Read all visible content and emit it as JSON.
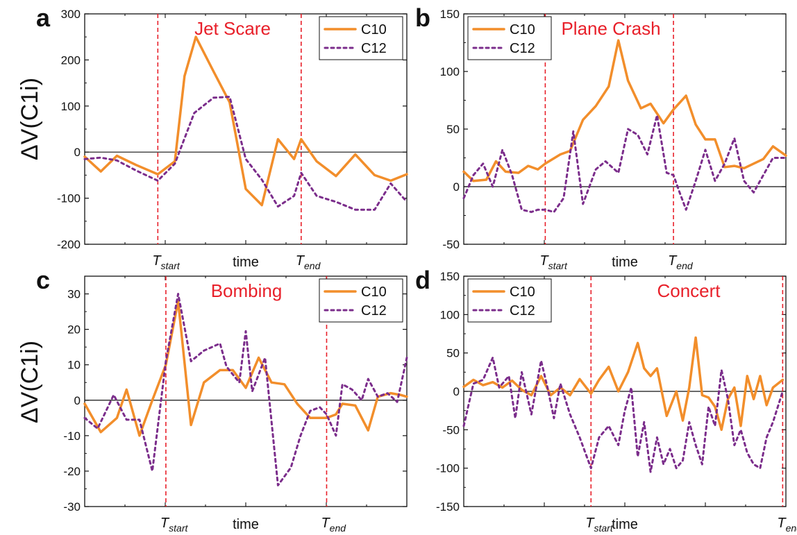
{
  "figure": {
    "ylabel_left": "ΔV(C1i)",
    "colors": {
      "c10": "#F28E2B",
      "c12": "#7B2D8B",
      "marker": "#E8202A",
      "axis": "#111111"
    }
  },
  "chart_data": [
    {
      "type": "line",
      "panel_letter": "a",
      "title": "Jet Scare",
      "xlabel": "time",
      "ylim": [
        -200,
        300
      ],
      "yticks": [
        -200,
        -100,
        0,
        100,
        200,
        300
      ],
      "x_range": [
        0,
        1
      ],
      "markers": [
        {
          "label": "T",
          "sub": "start",
          "x": 0.227
        },
        {
          "label": "T",
          "sub": "end",
          "x": 0.672
        }
      ],
      "legend": "top-right",
      "series": [
        {
          "name": "C10",
          "style": "solid",
          "color": "#F28E2B",
          "x": [
            0,
            0.05,
            0.1,
            0.16,
            0.227,
            0.28,
            0.31,
            0.345,
            0.4,
            0.45,
            0.5,
            0.55,
            0.6,
            0.65,
            0.672,
            0.72,
            0.78,
            0.84,
            0.9,
            0.95,
            1.0
          ],
          "y": [
            -10,
            -42,
            -8,
            -28,
            -48,
            -20,
            165,
            250,
            175,
            108,
            -80,
            -115,
            28,
            -15,
            28,
            -20,
            -52,
            -5,
            -50,
            -62,
            -48
          ]
        },
        {
          "name": "C12",
          "style": "dotted",
          "color": "#7B2D8B",
          "x": [
            0,
            0.05,
            0.1,
            0.16,
            0.227,
            0.28,
            0.34,
            0.4,
            0.45,
            0.5,
            0.55,
            0.6,
            0.65,
            0.672,
            0.72,
            0.78,
            0.84,
            0.9,
            0.95,
            1.0
          ],
          "y": [
            -15,
            -12,
            -18,
            -40,
            -62,
            -25,
            85,
            118,
            120,
            -15,
            -60,
            -118,
            -95,
            -45,
            -95,
            -108,
            -125,
            -125,
            -68,
            -108
          ]
        }
      ]
    },
    {
      "type": "line",
      "panel_letter": "b",
      "title": "Plane Crash",
      "xlabel": "time",
      "ylim": [
        -50,
        150
      ],
      "yticks": [
        -50,
        0,
        50,
        100,
        150
      ],
      "x_range": [
        0,
        1
      ],
      "markers": [
        {
          "label": "T",
          "sub": "start",
          "x": 0.253
        },
        {
          "label": "T",
          "sub": "end",
          "x": 0.651
        }
      ],
      "legend": "top-left",
      "series": [
        {
          "name": "C10",
          "style": "solid",
          "color": "#F28E2B",
          "x": [
            0,
            0.03,
            0.07,
            0.1,
            0.13,
            0.17,
            0.2,
            0.23,
            0.253,
            0.3,
            0.33,
            0.37,
            0.41,
            0.45,
            0.48,
            0.51,
            0.55,
            0.58,
            0.62,
            0.651,
            0.69,
            0.72,
            0.75,
            0.78,
            0.81,
            0.84,
            0.87,
            0.9,
            0.93,
            0.96,
            1.0
          ],
          "y": [
            13,
            5,
            6,
            22,
            13,
            12,
            18,
            15,
            20,
            28,
            31,
            58,
            70,
            87,
            127,
            92,
            68,
            72,
            55,
            67,
            79,
            54,
            41,
            41,
            17,
            18,
            16,
            20,
            24,
            35,
            27
          ]
        },
        {
          "name": "C12",
          "style": "dotted",
          "color": "#7B2D8B",
          "x": [
            0,
            0.03,
            0.06,
            0.09,
            0.12,
            0.15,
            0.18,
            0.21,
            0.23,
            0.253,
            0.28,
            0.31,
            0.34,
            0.37,
            0.41,
            0.44,
            0.48,
            0.51,
            0.54,
            0.57,
            0.6,
            0.63,
            0.651,
            0.67,
            0.69,
            0.72,
            0.75,
            0.78,
            0.81,
            0.84,
            0.87,
            0.9,
            0.93,
            0.96,
            1.0
          ],
          "y": [
            -10,
            10,
            20,
            0,
            32,
            10,
            -20,
            -22,
            -20,
            -20,
            -22,
            -10,
            48,
            -15,
            15,
            22,
            12,
            50,
            45,
            28,
            62,
            12,
            10,
            -5,
            -20,
            5,
            32,
            5,
            20,
            42,
            5,
            -5,
            10,
            25,
            25
          ]
        }
      ]
    },
    {
      "type": "line",
      "panel_letter": "c",
      "title": "Bombing",
      "xlabel": "time",
      "ylim": [
        -30,
        35
      ],
      "yticks": [
        -30,
        -20,
        -10,
        0,
        10,
        20,
        30
      ],
      "x_range": [
        0,
        1
      ],
      "markers": [
        {
          "label": "T",
          "sub": "start",
          "x": 0.252
        },
        {
          "label": "T",
          "sub": "end",
          "x": 0.751
        }
      ],
      "legend": "top-right",
      "series": [
        {
          "name": "C10",
          "style": "solid",
          "color": "#F28E2B",
          "x": [
            0,
            0.05,
            0.1,
            0.13,
            0.17,
            0.21,
            0.252,
            0.29,
            0.33,
            0.37,
            0.42,
            0.46,
            0.5,
            0.54,
            0.58,
            0.62,
            0.66,
            0.7,
            0.751,
            0.78,
            0.8,
            0.84,
            0.88,
            0.91,
            0.95,
            0.98,
            1.0
          ],
          "y": [
            -1,
            -9,
            -5,
            3,
            -10,
            0,
            10,
            28,
            -7,
            5,
            8.5,
            8.5,
            3.5,
            12,
            5,
            4.5,
            -1,
            -5,
            -5,
            -4,
            -1,
            -1.5,
            -8.5,
            1,
            2,
            1.5,
            1
          ]
        },
        {
          "name": "C12",
          "style": "dotted",
          "color": "#7B2D8B",
          "x": [
            0,
            0.04,
            0.09,
            0.13,
            0.17,
            0.21,
            0.252,
            0.29,
            0.33,
            0.37,
            0.42,
            0.44,
            0.48,
            0.5,
            0.52,
            0.56,
            0.6,
            0.64,
            0.67,
            0.7,
            0.73,
            0.751,
            0.78,
            0.8,
            0.83,
            0.86,
            0.88,
            0.91,
            0.94,
            0.97,
            1.0
          ],
          "y": [
            -5,
            -8,
            1.5,
            -5.5,
            -5.5,
            -20,
            11,
            30,
            11,
            14,
            16,
            9.5,
            5,
            19.5,
            2.5,
            12,
            -24,
            -19,
            -10,
            -3,
            -2,
            -4,
            -10,
            4.5,
            3,
            0,
            6,
            1,
            2,
            -0.5,
            12
          ]
        }
      ]
    },
    {
      "type": "line",
      "panel_letter": "d",
      "title": "Concert",
      "xlabel": "time",
      "ylim": [
        -150,
        150
      ],
      "yticks": [
        -150,
        -100,
        -50,
        0,
        50,
        100,
        150
      ],
      "x_range": [
        0,
        1
      ],
      "markers": [
        {
          "label": "T",
          "sub": "start",
          "x": 0.395
        },
        {
          "label": "T",
          "sub": "end",
          "x": 0.99
        }
      ],
      "legend": "top-left",
      "series": [
        {
          "name": "C10",
          "style": "solid",
          "color": "#F28E2B",
          "x": [
            0,
            0.03,
            0.06,
            0.09,
            0.12,
            0.15,
            0.18,
            0.21,
            0.24,
            0.27,
            0.3,
            0.33,
            0.36,
            0.395,
            0.42,
            0.45,
            0.48,
            0.51,
            0.54,
            0.56,
            0.58,
            0.6,
            0.63,
            0.66,
            0.68,
            0.7,
            0.72,
            0.74,
            0.76,
            0.78,
            0.8,
            0.82,
            0.84,
            0.86,
            0.88,
            0.9,
            0.92,
            0.94,
            0.96,
            0.99
          ],
          "y": [
            6,
            15,
            8,
            12,
            5,
            14,
            2,
            -5,
            20,
            -5,
            5,
            -5,
            16,
            -3,
            15,
            32,
            0,
            25,
            63,
            30,
            20,
            30,
            -32,
            0,
            -38,
            5,
            70,
            -5,
            -8,
            -20,
            -50,
            -10,
            5,
            -45,
            20,
            -10,
            20,
            -18,
            5,
            15
          ]
        },
        {
          "name": "C12",
          "style": "dotted",
          "color": "#7B2D8B",
          "x": [
            0,
            0.03,
            0.06,
            0.09,
            0.11,
            0.14,
            0.16,
            0.18,
            0.21,
            0.24,
            0.26,
            0.28,
            0.3,
            0.33,
            0.36,
            0.395,
            0.42,
            0.45,
            0.48,
            0.5,
            0.52,
            0.54,
            0.56,
            0.58,
            0.6,
            0.62,
            0.64,
            0.66,
            0.68,
            0.7,
            0.72,
            0.74,
            0.76,
            0.78,
            0.8,
            0.82,
            0.84,
            0.86,
            0.88,
            0.9,
            0.92,
            0.94,
            0.96,
            0.99
          ],
          "y": [
            -45,
            10,
            15,
            44,
            5,
            20,
            -35,
            25,
            -30,
            40,
            5,
            -35,
            10,
            -30,
            -60,
            -100,
            -60,
            -45,
            -70,
            -25,
            5,
            -85,
            -40,
            -105,
            -60,
            -95,
            -75,
            -100,
            -90,
            -40,
            -70,
            -95,
            -20,
            -45,
            28,
            -10,
            -70,
            -50,
            -80,
            -95,
            -100,
            -60,
            -40,
            0
          ]
        }
      ]
    }
  ]
}
